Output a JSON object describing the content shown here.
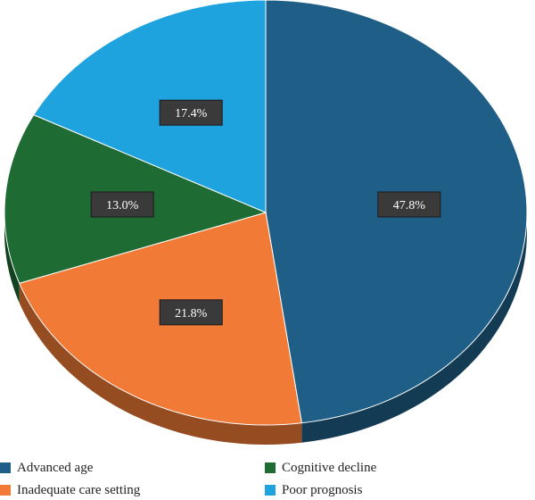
{
  "chart_data": {
    "type": "pie",
    "categories": [
      "Advanced age",
      "Inadequate care setting",
      "Cognitive decline",
      "Poor prognosis"
    ],
    "values": [
      47.8,
      21.8,
      13.0,
      17.4
    ],
    "labels": [
      "47.8%",
      "21.8%",
      "13.0%",
      "17.4%"
    ],
    "colors": [
      "#1f5f87",
      "#f07a36",
      "#1e6b33",
      "#1fa3df"
    ],
    "title": "",
    "legend_position": "bottom",
    "style": "3d"
  },
  "legend": {
    "items": [
      {
        "label": "Advanced age",
        "color": "#1f5f87"
      },
      {
        "label": "Cognitive decline",
        "color": "#1e6b33"
      },
      {
        "label": "Inadequate care setting",
        "color": "#f07a36"
      },
      {
        "label": "Poor prognosis",
        "color": "#1fa3df"
      }
    ]
  }
}
